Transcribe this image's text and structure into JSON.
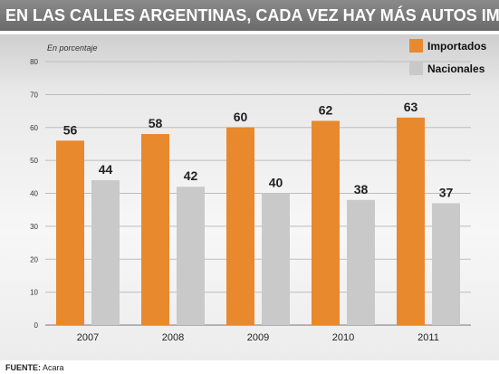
{
  "header": {
    "title": "EN LAS CALLES ARGENTINAS, CADA VEZ HAY MÁS AUTOS IMPORTADOS"
  },
  "footer": {
    "source_label": "FUENTE:",
    "source_value": "Acara"
  },
  "colors": {
    "importados": "#e8892e",
    "nacionales": "#c9c9c9",
    "panel": "#efefef"
  },
  "chart_data": {
    "type": "bar",
    "unit_note": "En porcentaje",
    "categories": [
      "2007",
      "2008",
      "2009",
      "2010",
      "2011"
    ],
    "series": [
      {
        "name": "Importados",
        "values": [
          56,
          58,
          60,
          62,
          63
        ]
      },
      {
        "name": "Nacionales",
        "values": [
          44,
          42,
          40,
          38,
          37
        ]
      }
    ],
    "ylim": [
      0,
      80
    ],
    "yticks": [
      0,
      10,
      20,
      30,
      40,
      50,
      60,
      70,
      80
    ],
    "grid": true,
    "legend": "top-right",
    "data_labels": true
  }
}
